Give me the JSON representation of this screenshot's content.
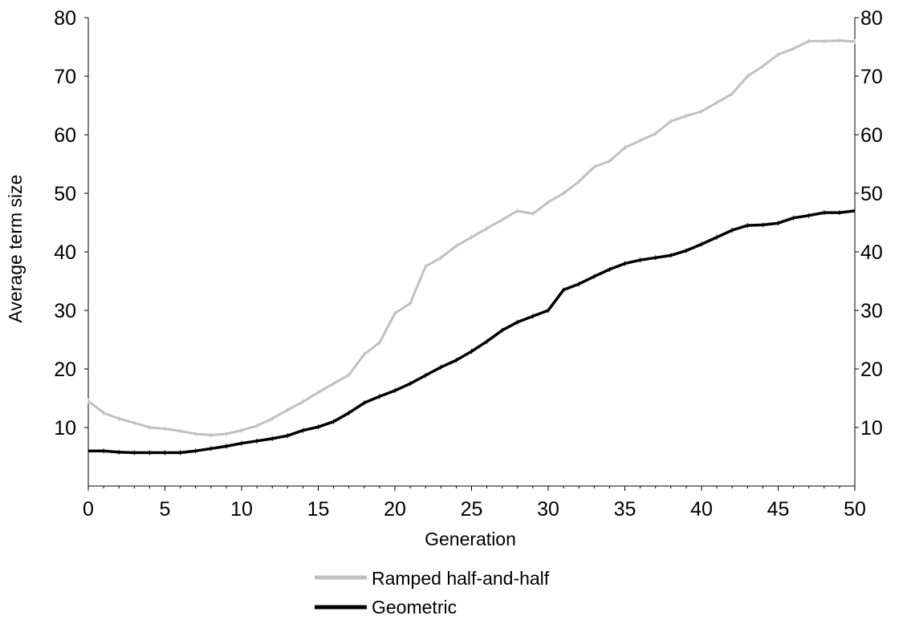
{
  "chart_data": {
    "type": "line",
    "xlabel": "Generation",
    "ylabel": "Average term size",
    "xlim": [
      0,
      50
    ],
    "ylim": [
      0,
      80
    ],
    "x_ticks": [
      "0",
      "5",
      "10",
      "15",
      "20",
      "25",
      "30",
      "35",
      "40",
      "45",
      "50"
    ],
    "y_ticks_left": [
      "10",
      "20",
      "30",
      "40",
      "50",
      "60",
      "70",
      "80"
    ],
    "y_ticks_right": [
      "10",
      "20",
      "30",
      "40",
      "50",
      "60",
      "70",
      "80"
    ],
    "grid": false,
    "legend_position": "bottom",
    "series": [
      {
        "name": "Ramped half-and-half",
        "color": "#c0c0c0",
        "x": [
          0,
          1,
          2,
          3,
          4,
          5,
          6,
          7,
          8,
          9,
          10,
          11,
          12,
          13,
          14,
          15,
          16,
          17,
          18,
          19,
          20,
          21,
          22,
          23,
          24,
          25,
          26,
          27,
          28,
          29,
          30,
          31,
          32,
          33,
          34,
          35,
          36,
          37,
          38,
          39,
          40,
          41,
          42,
          43,
          44,
          45,
          46,
          47,
          48,
          49,
          50
        ],
        "y": [
          14.5,
          12.5,
          11.5,
          10.8,
          10.0,
          9.8,
          9.4,
          8.9,
          8.7,
          8.9,
          9.5,
          10.3,
          11.5,
          13.0,
          14.4,
          16.0,
          17.5,
          19.0,
          22.5,
          24.5,
          29.5,
          31.2,
          37.5,
          39.0,
          41.0,
          42.5,
          44.0,
          45.5,
          47.0,
          46.5,
          48.5,
          50.0,
          52.0,
          54.5,
          55.5,
          57.8,
          59.0,
          60.2,
          62.3,
          63.2,
          64.0,
          65.5,
          67.0,
          70.0,
          71.7,
          73.7,
          74.7,
          76.0,
          76.0,
          76.1,
          75.9
        ]
      },
      {
        "name": "Geometric",
        "color": "#000000",
        "x": [
          0,
          1,
          2,
          3,
          4,
          5,
          6,
          7,
          8,
          9,
          10,
          11,
          12,
          13,
          14,
          15,
          16,
          17,
          18,
          19,
          20,
          21,
          22,
          23,
          24,
          25,
          26,
          27,
          28,
          29,
          30,
          31,
          32,
          33,
          34,
          35,
          36,
          37,
          38,
          39,
          40,
          41,
          42,
          43,
          44,
          45,
          46,
          47,
          48,
          49,
          50
        ],
        "y": [
          6.0,
          6.0,
          5.8,
          5.7,
          5.7,
          5.7,
          5.7,
          6.0,
          6.4,
          6.8,
          7.3,
          7.7,
          8.1,
          8.6,
          9.5,
          10.1,
          11.0,
          12.5,
          14.2,
          15.3,
          16.3,
          17.5,
          18.9,
          20.3,
          21.5,
          23.0,
          24.7,
          26.6,
          28.0,
          29.0,
          30.0,
          33.5,
          34.5,
          35.8,
          37.0,
          38.0,
          38.6,
          39.0,
          39.4,
          40.2,
          41.3,
          42.5,
          43.7,
          44.5,
          44.6,
          44.9,
          45.8,
          46.2,
          46.7,
          46.7,
          47.0
        ]
      }
    ]
  }
}
